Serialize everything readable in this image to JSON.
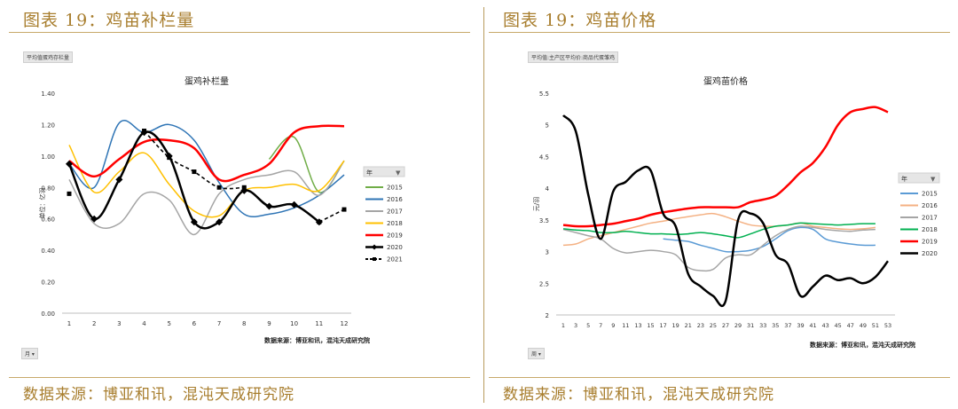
{
  "panels": [
    {
      "fig_title": "图表 19：鸡苗补栏量",
      "footer": "数据来源：博亚和讯，混沌天成研究院",
      "chip_top": "平均值蛋鸡存栏量",
      "chip_bottom": "月 ▾",
      "legend_header": "年",
      "source": "数据来源：博亚和讯，混沌天成研究院",
      "colors": {
        "2015": "#70ad47",
        "2016": "#2e74b5",
        "2017": "#a5a5a5",
        "2018": "#ffc000",
        "2019": "#ff0000",
        "2020": "#000000",
        "2021": "#000000"
      }
    },
    {
      "fig_title": "图表 19：鸡苗价格",
      "footer": "数据来源：博亚和讯，混沌天成研究院",
      "chip_top": "平均值:主产区平均价:商品代蛋雏鸡",
      "chip_bottom": "周 ▾",
      "legend_header": "年",
      "source": "数据来源：博亚和讯，混沌天成研究院",
      "colors": {
        "2015": "#5b9bd5",
        "2016": "#f4b183",
        "2017": "#a5a5a5",
        "2018": "#00b050",
        "2019": "#ff0000",
        "2020": "#000000"
      }
    }
  ],
  "chart_data": [
    {
      "type": "line",
      "title": "蛋鸡补栏量",
      "ylabel": "单位：亿羽",
      "xlabel": "",
      "x": [
        1,
        2,
        3,
        4,
        5,
        6,
        7,
        8,
        9,
        10,
        11,
        12
      ],
      "ylim": [
        0,
        1.4
      ],
      "yticks": [
        "0.00",
        "0.20",
        "0.40",
        "0.60",
        "0.80",
        "1.00",
        "1.20",
        "1.40"
      ],
      "legend_position": "right",
      "series": [
        {
          "name": "2015",
          "values": [
            null,
            null,
            null,
            null,
            null,
            null,
            null,
            null,
            0.98,
            1.12,
            0.77,
            0.97
          ]
        },
        {
          "name": "2016",
          "values": [
            0.95,
            0.8,
            1.21,
            1.15,
            1.2,
            1.1,
            0.83,
            0.63,
            0.63,
            0.67,
            0.75,
            0.88
          ]
        },
        {
          "name": "2017",
          "values": [
            0.85,
            0.57,
            0.57,
            0.76,
            0.72,
            0.5,
            0.76,
            0.85,
            0.88,
            0.9,
            0.75,
            0.97
          ]
        },
        {
          "name": "2018",
          "values": [
            1.07,
            0.77,
            0.9,
            1.02,
            0.82,
            0.65,
            0.62,
            0.78,
            0.8,
            0.82,
            0.78,
            0.97
          ]
        },
        {
          "name": "2019",
          "values": [
            0.97,
            0.87,
            0.98,
            1.09,
            1.1,
            1.05,
            0.85,
            0.88,
            0.95,
            1.15,
            1.19,
            1.19
          ]
        },
        {
          "name": "2020",
          "values": [
            0.95,
            0.6,
            0.85,
            1.15,
            1.0,
            0.58,
            0.58,
            0.78,
            0.68,
            0.69,
            0.58,
            null
          ]
        },
        {
          "name": "2021",
          "values": [
            0.76,
            null,
            null,
            1.16,
            0.99,
            0.9,
            0.8,
            0.8,
            null,
            null,
            0.58,
            0.66
          ]
        }
      ]
    },
    {
      "type": "line",
      "title": "蛋鸡苗价格",
      "ylabel": "元/羽",
      "xlabel": "",
      "x": [
        1,
        3,
        5,
        7,
        9,
        11,
        13,
        15,
        17,
        19,
        21,
        23,
        25,
        27,
        29,
        31,
        33,
        35,
        37,
        39,
        41,
        43,
        45,
        47,
        49,
        51,
        53
      ],
      "ylim": [
        2,
        5.5
      ],
      "yticks": [
        "2",
        "2.5",
        "3",
        "3.5",
        "4",
        "4.5",
        "5",
        "5.5"
      ],
      "legend_position": "right",
      "series": [
        {
          "name": "2015",
          "values": [
            null,
            null,
            null,
            null,
            null,
            null,
            null,
            null,
            3.2,
            3.18,
            3.16,
            3.1,
            3.05,
            3.0,
            3.0,
            3.02,
            3.08,
            3.2,
            3.33,
            3.38,
            3.35,
            3.2,
            3.15,
            3.12,
            3.1,
            3.1,
            null
          ]
        },
        {
          "name": "2016",
          "values": [
            3.1,
            3.12,
            3.2,
            3.25,
            3.3,
            3.35,
            3.4,
            3.45,
            3.48,
            3.52,
            3.55,
            3.58,
            3.6,
            3.55,
            3.48,
            3.42,
            3.4,
            3.4,
            3.42,
            3.45,
            3.4,
            3.38,
            3.36,
            3.35,
            3.36,
            3.38,
            null
          ]
        },
        {
          "name": "2017",
          "values": [
            3.35,
            3.3,
            3.25,
            3.2,
            3.05,
            2.98,
            3.0,
            3.02,
            3.0,
            2.95,
            2.75,
            2.7,
            2.72,
            2.9,
            2.95,
            2.95,
            3.1,
            3.25,
            3.35,
            3.4,
            3.38,
            3.35,
            3.33,
            3.32,
            3.34,
            3.35,
            null
          ]
        },
        {
          "name": "2018",
          "values": [
            3.36,
            3.34,
            3.33,
            3.3,
            3.3,
            3.32,
            3.3,
            3.28,
            3.28,
            3.27,
            3.28,
            3.3,
            3.28,
            3.25,
            3.22,
            3.28,
            3.35,
            3.4,
            3.42,
            3.45,
            3.44,
            3.43,
            3.42,
            3.43,
            3.44,
            3.44,
            null
          ]
        },
        {
          "name": "2019",
          "values": [
            3.42,
            3.4,
            3.4,
            3.42,
            3.44,
            3.48,
            3.52,
            3.58,
            3.62,
            3.65,
            3.68,
            3.7,
            3.7,
            3.7,
            3.7,
            3.78,
            3.82,
            3.88,
            4.05,
            4.25,
            4.4,
            4.65,
            5.0,
            5.2,
            5.25,
            5.28,
            5.2
          ]
        },
        {
          "name": "2020",
          "values": [
            5.15,
            4.9,
            3.9,
            3.2,
            3.95,
            4.1,
            4.28,
            4.28,
            3.6,
            3.4,
            2.65,
            2.45,
            2.3,
            2.22,
            3.5,
            3.6,
            3.45,
            2.95,
            2.8,
            2.3,
            2.45,
            2.62,
            2.55,
            2.58,
            2.5,
            2.6,
            2.85
          ]
        }
      ]
    }
  ]
}
